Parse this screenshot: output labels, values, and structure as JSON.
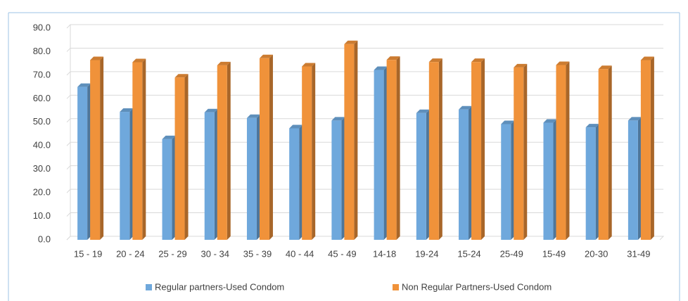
{
  "chart_data": {
    "type": "bar3d",
    "categories": [
      "15 - 19",
      "20 - 24",
      "25 - 29",
      "30 - 34",
      "35 - 39",
      "40 - 44",
      "45 - 49",
      "14-18",
      "19-24",
      "15-24",
      "25-49",
      "15-49",
      "20-30",
      "31-49"
    ],
    "series": [
      {
        "name": "Regular partners-Used Condom",
        "color": "#6fa8dc",
        "values": [
          65.0,
          54.4,
          42.8,
          54.2,
          51.8,
          47.4,
          50.7,
          72.2,
          53.9,
          55.4,
          49.2,
          49.8,
          47.8,
          50.7
        ]
      },
      {
        "name": "Non Regular Partners-Used Condom",
        "color": "#f0923a",
        "values": [
          76.4,
          75.5,
          69.0,
          74.2,
          77.2,
          73.7,
          83.2,
          76.5,
          75.6,
          75.6,
          73.3,
          74.3,
          72.6,
          76.4
        ]
      }
    ],
    "ylim": [
      0,
      90
    ],
    "yticks": [
      {
        "value": 0,
        "label": "0.0"
      },
      {
        "value": 10,
        "label": "10.0"
      },
      {
        "value": 20,
        "label": "20.0"
      },
      {
        "value": 30,
        "label": "30.0"
      },
      {
        "value": 40,
        "label": "40.0"
      },
      {
        "value": 50,
        "label": "50.0"
      },
      {
        "value": 60,
        "label": "60.0"
      },
      {
        "value": 70,
        "label": "70.0"
      },
      {
        "value": 80,
        "label": "80.0"
      },
      {
        "value": 90,
        "label": "90.0"
      }
    ],
    "grid": true
  }
}
